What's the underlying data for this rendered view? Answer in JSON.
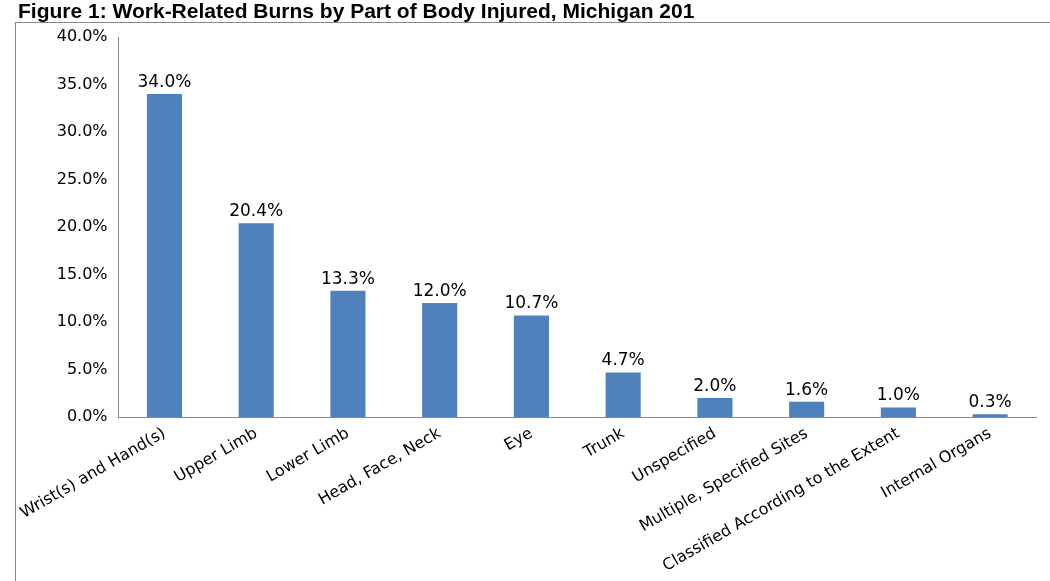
{
  "chart_data": {
    "type": "bar",
    "title": "Figure 1: Work-Related Burns by Part of Body Injured, Michigan 201",
    "categories": [
      "Wrist(s) and Hand(s)",
      "Upper Limb",
      "Lower Limb",
      "Head, Face, Neck",
      "Eye",
      "Trunk",
      "Unspecified",
      "Multiple, Specified Sites",
      "Classified According to the Extent",
      "Internal Organs"
    ],
    "values": [
      34.0,
      20.4,
      13.3,
      12.0,
      10.7,
      4.7,
      2.0,
      1.6,
      1.0,
      0.3
    ],
    "value_labels": [
      "34.0%",
      "20.4%",
      "13.3%",
      "12.0%",
      "10.7%",
      "4.7%",
      "2.0%",
      "1.6%",
      "1.0%",
      "0.3%"
    ],
    "color": "#4f81bd",
    "ylim": [
      0,
      40
    ],
    "yticks": [
      {
        "value": 0,
        "label": "0.0%"
      },
      {
        "value": 5,
        "label": "5.0%"
      },
      {
        "value": 10,
        "label": "10.0%"
      },
      {
        "value": 15,
        "label": "15.0%"
      },
      {
        "value": 20,
        "label": "20.0%"
      },
      {
        "value": 25,
        "label": "25.0%"
      },
      {
        "value": 30,
        "label": "30.0%"
      },
      {
        "value": 35,
        "label": "35.0%"
      },
      {
        "value": 40,
        "label": "40.0%"
      }
    ],
    "grid": false,
    "legend": false
  }
}
